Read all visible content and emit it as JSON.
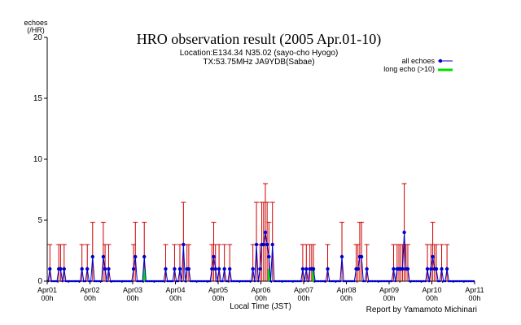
{
  "chart_data": {
    "type": "line",
    "title": "HRO observation result (2005 Apr.01-10)",
    "subtitle_lines": [
      "Location:E134.34 N35.02 (sayo-cho Hyogo)",
      "TX:53.75MHz JA9YDB(Sabae)"
    ],
    "ylabel_lines": [
      "echoes",
      "(/HR)"
    ],
    "xlabel": "Local Time (JST)",
    "credit": "Report by Yamamoto Michinari",
    "ylim": [
      0,
      20
    ],
    "yticks": [
      0,
      5,
      10,
      15,
      20
    ],
    "xlim": [
      0,
      240
    ],
    "xtick_hours": [
      0,
      24,
      48,
      72,
      96,
      120,
      144,
      168,
      192,
      216,
      240
    ],
    "xtick_labels": [
      [
        "Apr01",
        "00h"
      ],
      [
        "Apr02",
        "00h"
      ],
      [
        "Apr03",
        "00h"
      ],
      [
        "Apr04",
        "00h"
      ],
      [
        "Apr05",
        "00h"
      ],
      [
        "Apr06",
        "00h"
      ],
      [
        "Apr07",
        "00h"
      ],
      [
        "Apr08",
        "00h"
      ],
      [
        "Apr09",
        "00h"
      ],
      [
        "Apr10",
        "00h"
      ],
      [
        "Apr11",
        "00h"
      ]
    ],
    "grid": false,
    "legend_position": "top-right",
    "legend": [
      {
        "label": "all echoes",
        "color": "#0000cc"
      },
      {
        "label": "long echo (>10)",
        "color": "#00dd00"
      }
    ],
    "colors": {
      "line": "#0000cc",
      "error": "#cc0000",
      "long": "#00dd00"
    },
    "series": [
      {
        "name": "all echoes",
        "points": [
          [
            1,
            1
          ],
          [
            6,
            1
          ],
          [
            7,
            1
          ],
          [
            9,
            1
          ],
          [
            19,
            1
          ],
          [
            22,
            1
          ],
          [
            25,
            2
          ],
          [
            31,
            2
          ],
          [
            32,
            1
          ],
          [
            34,
            1
          ],
          [
            48,
            1
          ],
          [
            49,
            2
          ],
          [
            54,
            2
          ],
          [
            66,
            1
          ],
          [
            71,
            1
          ],
          [
            74,
            1
          ],
          [
            76,
            3
          ],
          [
            78,
            1
          ],
          [
            79,
            1
          ],
          [
            92,
            1
          ],
          [
            93,
            2
          ],
          [
            94,
            1
          ],
          [
            96,
            1
          ],
          [
            99,
            1
          ],
          [
            102,
            1
          ],
          [
            115,
            1
          ],
          [
            117,
            3
          ],
          [
            119,
            1
          ],
          [
            120,
            3
          ],
          [
            121,
            3
          ],
          [
            122,
            4
          ],
          [
            123,
            3
          ],
          [
            124,
            2
          ],
          [
            126,
            3
          ],
          [
            143,
            1
          ],
          [
            145,
            1
          ],
          [
            147,
            1
          ],
          [
            148,
            1
          ],
          [
            149,
            1
          ],
          [
            157,
            1
          ],
          [
            165,
            2
          ],
          [
            173,
            1
          ],
          [
            174,
            1
          ],
          [
            175,
            2
          ],
          [
            176,
            2
          ],
          [
            179,
            1
          ],
          [
            194,
            1
          ],
          [
            196,
            1
          ],
          [
            197,
            1
          ],
          [
            198,
            1
          ],
          [
            199,
            1
          ],
          [
            200,
            4
          ],
          [
            201,
            1
          ],
          [
            202,
            1
          ],
          [
            213,
            1
          ],
          [
            215,
            1
          ],
          [
            216,
            2
          ],
          [
            217,
            1
          ],
          [
            218,
            1
          ],
          [
            221,
            1
          ],
          [
            224,
            1
          ]
        ]
      },
      {
        "name": "long echo (>10)",
        "points": [
          [
            54,
            1
          ],
          [
            124,
            1
          ],
          [
            149,
            1
          ]
        ]
      }
    ]
  }
}
